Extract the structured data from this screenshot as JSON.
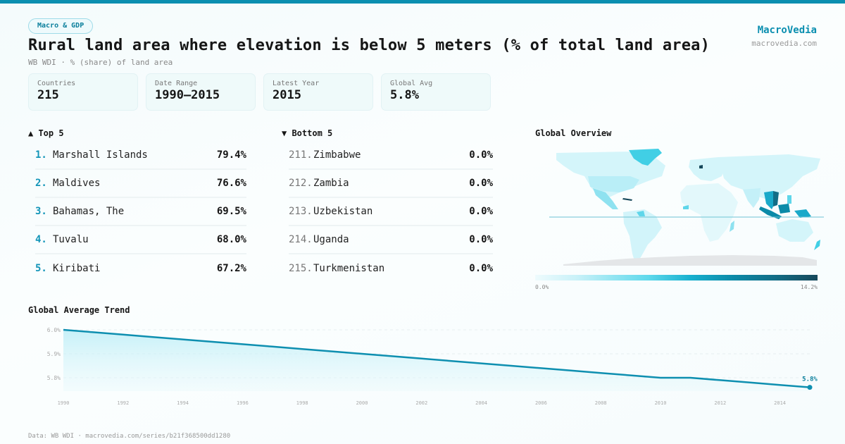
{
  "header": {
    "tag": "Macro & GDP",
    "title": "Rural land area where elevation is below 5 meters (% of total land area)",
    "subtitle": "WB WDI · % (share) of land area"
  },
  "brand": {
    "name": "MacroVedia",
    "url": "macrovedia.com"
  },
  "stats": [
    {
      "label": "Countries",
      "value": "215"
    },
    {
      "label": "Date Range",
      "value": "1990–2015"
    },
    {
      "label": "Latest Year",
      "value": "2015"
    },
    {
      "label": "Global Avg",
      "value": "5.8%"
    }
  ],
  "top5": {
    "title": "▲ Top 5",
    "items": [
      {
        "rank": "1.",
        "name": "Marshall Islands",
        "value": "79.4%"
      },
      {
        "rank": "2.",
        "name": "Maldives",
        "value": "76.6%"
      },
      {
        "rank": "3.",
        "name": "Bahamas, The",
        "value": "69.5%"
      },
      {
        "rank": "4.",
        "name": "Tuvalu",
        "value": "68.0%"
      },
      {
        "rank": "5.",
        "name": "Kiribati",
        "value": "67.2%"
      }
    ]
  },
  "bottom5": {
    "title": "▼ Bottom 5",
    "items": [
      {
        "rank": "211.",
        "name": "Zimbabwe",
        "value": "0.0%"
      },
      {
        "rank": "212.",
        "name": "Zambia",
        "value": "0.0%"
      },
      {
        "rank": "213.",
        "name": "Uzbekistan",
        "value": "0.0%"
      },
      {
        "rank": "214.",
        "name": "Uganda",
        "value": "0.0%"
      },
      {
        "rank": "215.",
        "name": "Turkmenistan",
        "value": "0.0%"
      }
    ]
  },
  "map": {
    "title": "Global Overview",
    "legend_min": "0.0%",
    "legend_max": "14.2%",
    "colors": {
      "low": "#eefbfd",
      "mid": "#5fd9ec",
      "high": "#17485a",
      "no_data": "#e4e6e8"
    }
  },
  "footer": "Data: WB WDI · macrovedia.com/series/b21f368500dd1280",
  "colors": {
    "accent": "#0b8fb0",
    "line": "#0e8fb0"
  },
  "chart_data": {
    "type": "area",
    "title": "Global Average Trend",
    "xlabel": "",
    "ylabel": "",
    "x": [
      1990,
      1991,
      1992,
      1993,
      1994,
      1995,
      1996,
      1997,
      1998,
      1999,
      2000,
      2001,
      2002,
      2003,
      2004,
      2005,
      2006,
      2007,
      2008,
      2009,
      2010,
      2011,
      2012,
      2013,
      2014,
      2015
    ],
    "series": [
      {
        "name": "Global Average",
        "values": [
          6.0,
          5.99,
          5.98,
          5.97,
          5.96,
          5.95,
          5.94,
          5.93,
          5.92,
          5.91,
          5.9,
          5.89,
          5.88,
          5.87,
          5.86,
          5.85,
          5.84,
          5.83,
          5.82,
          5.81,
          5.8,
          5.8,
          5.79,
          5.78,
          5.77,
          5.76
        ]
      }
    ],
    "x_ticks": [
      "1990",
      "1992",
      "1994",
      "1996",
      "1998",
      "2000",
      "2002",
      "2004",
      "2006",
      "2008",
      "2010",
      "2012",
      "2014"
    ],
    "y_ticks": [
      "6.0%",
      "5.9%",
      "5.8%"
    ],
    "y_tick_values": [
      6.0,
      5.9,
      5.8
    ],
    "ylim": [
      5.735,
      6.0
    ],
    "xlim": [
      1990,
      2015
    ],
    "grid": true,
    "end_label": "5.8%"
  }
}
